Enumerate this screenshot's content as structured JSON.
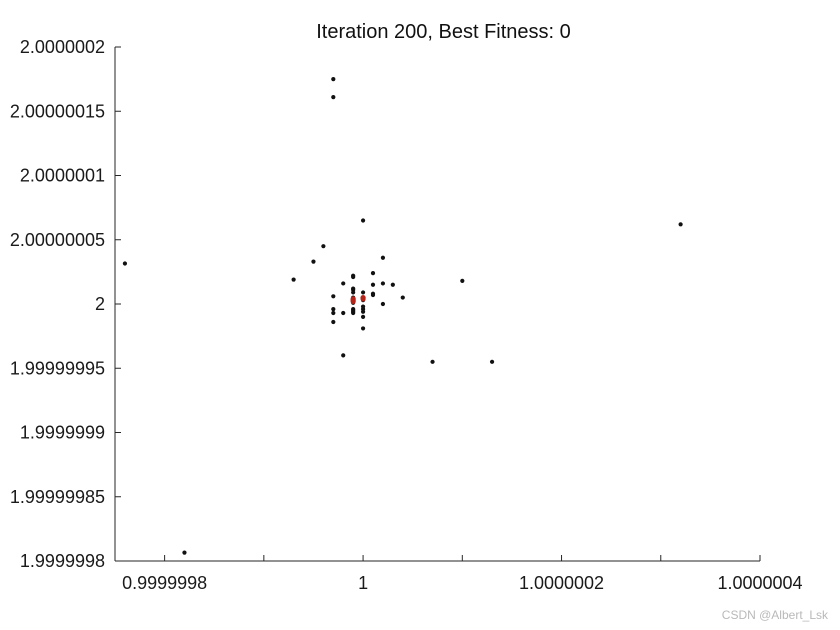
{
  "chart_data": {
    "type": "scatter",
    "title": "Iteration 200, Best Fitness: 0",
    "xlabel": "",
    "ylabel": "",
    "xlim": [
      0.99999975,
      1.0000004
    ],
    "ylim": [
      1.9999998,
      2.0000002
    ],
    "x_ticks": [
      0.9999998,
      0.9999999,
      1.0,
      1.0000001,
      1.0000002,
      1.0000003,
      1.0000004
    ],
    "x_tick_labels": [
      {
        "value": 0.9999998,
        "label": "0.9999998"
      },
      {
        "value": 1.0,
        "label": "1"
      },
      {
        "value": 1.0000002,
        "label": "1.0000002"
      },
      {
        "value": 1.0000004,
        "label": "1.0000004"
      }
    ],
    "y_ticks": [
      {
        "value": 2.0000002,
        "label": "2.0000002"
      },
      {
        "value": 2.00000015,
        "label": "2.00000015"
      },
      {
        "value": 2.0000001,
        "label": "2.0000001"
      },
      {
        "value": 2.00000005,
        "label": "2.00000005"
      },
      {
        "value": 2.0,
        "label": "2"
      },
      {
        "value": 1.99999995,
        "label": "1.99999995"
      },
      {
        "value": 1.9999999,
        "label": "1.9999999"
      },
      {
        "value": 1.99999985,
        "label": "1.99999985"
      },
      {
        "value": 1.9999998,
        "label": "1.9999998"
      }
    ],
    "grid": false,
    "series": [
      {
        "color": "#111111",
        "points": [
          [
            0.99999976,
            2.0000000315
          ],
          [
            0.99999982,
            1.9999998065
          ],
          [
            0.99999997,
            2.000000175
          ],
          [
            0.99999997,
            2.000000161
          ],
          [
            1.0,
            2.000000065
          ],
          [
            0.99999996,
            2.000000045
          ],
          [
            0.99999995,
            2.000000033
          ],
          [
            0.99999993,
            2.000000019
          ],
          [
            0.99999999,
            2.000000021
          ],
          [
            0.99999998,
            2.000000016
          ],
          [
            1.00000002,
            2.000000036
          ],
          [
            1.00000001,
            2.000000024
          ],
          [
            1.00000001,
            2.000000015
          ],
          [
            1.00000002,
            2.000000016
          ],
          [
            1.00000003,
            2.000000015
          ],
          [
            1.00000004,
            2.000000005
          ],
          [
            1.00000001,
            2.000000007
          ],
          [
            1.00000001,
            2.000000008
          ],
          [
            1.00000002,
            2.0
          ],
          [
            1.0,
            1.999999998
          ],
          [
            0.99999998,
            1.999999993
          ],
          [
            1.0,
            1.99999999
          ],
          [
            0.99999997,
            1.999999986
          ],
          [
            1.0,
            1.999999981
          ],
          [
            1.00000013,
            1.999999955
          ],
          [
            1.0000001,
            2.000000018
          ],
          [
            1.00000032,
            2.000000062
          ],
          [
            1.00000007,
            1.999999955
          ],
          [
            0.99999998,
            1.99999996
          ],
          [
            0.99999997,
            2.000000006
          ],
          [
            0.99999997,
            1.999999996
          ],
          [
            0.99999997,
            1.999999993
          ],
          [
            0.99999999,
            2.000000011
          ],
          [
            0.99999999,
            2.000000022
          ],
          [
            0.99999999,
            2.000000012
          ],
          [
            0.99999999,
            2.000000009
          ],
          [
            0.99999999,
            2.000000005
          ],
          [
            0.99999999,
            2.000000001
          ],
          [
            0.99999999,
            1.999999996
          ],
          [
            0.99999999,
            1.999999993
          ],
          [
            0.99999999,
            1.999999995
          ],
          [
            1.0,
            2.000000009
          ],
          [
            1.0,
            2.000000003
          ],
          [
            1.0,
            1.999999996
          ],
          [
            0.99999999,
            1.999999994
          ],
          [
            1.0,
            1.999999994
          ]
        ]
      },
      {
        "color": "#b42418",
        "points": [
          [
            0.99999999,
            2.000000004
          ],
          [
            0.99999999,
            2.000000003
          ],
          [
            1.0,
            2.000000005
          ],
          [
            0.99999999,
            2.000000002
          ],
          [
            1.0,
            2.000000004
          ]
        ]
      }
    ]
  },
  "watermark": "CSDN @Albert_Lsk"
}
